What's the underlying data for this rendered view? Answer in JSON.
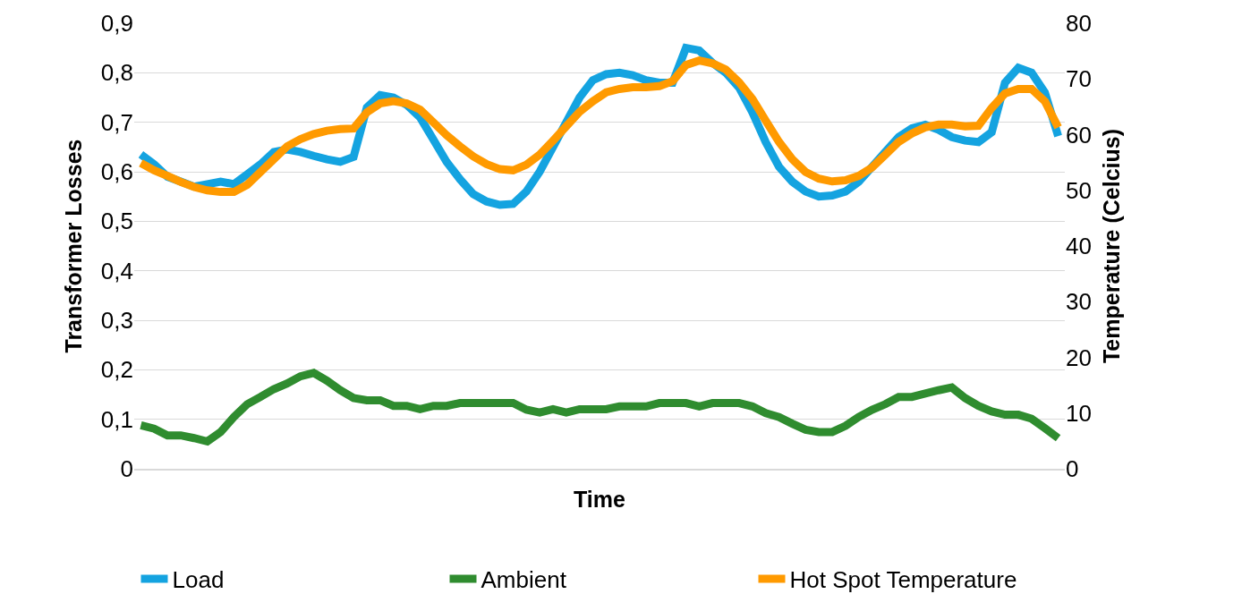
{
  "chart_data": {
    "type": "line",
    "xlabel": "Time",
    "ylabel": "Transformer Losses",
    "y2label": "Temperature (Celcius)",
    "categories": [
      null,
      null,
      null,
      null,
      null,
      null,
      null,
      null,
      null,
      null,
      null,
      null,
      null,
      null,
      null,
      null,
      null,
      null,
      null,
      null,
      null,
      null,
      null,
      null,
      null,
      null,
      null,
      null,
      null,
      null,
      null,
      null,
      null,
      null,
      null,
      null,
      null,
      null,
      null,
      null,
      null,
      null,
      null,
      null,
      null,
      null,
      null,
      null,
      null,
      null,
      null,
      null,
      null,
      null,
      null,
      null,
      null,
      null,
      null,
      null,
      null,
      null,
      null,
      null,
      null,
      null,
      null,
      null,
      null,
      null
    ],
    "series": [
      {
        "name": "Load",
        "color": "#14a3e0",
        "values": [
          0.635,
          0.615,
          0.59,
          0.58,
          0.57,
          0.575,
          0.58,
          0.575,
          0.595,
          0.615,
          0.64,
          0.645,
          0.64,
          0.632,
          0.625,
          0.62,
          0.63,
          0.73,
          0.755,
          0.75,
          0.735,
          0.71,
          0.665,
          0.62,
          0.585,
          0.555,
          0.54,
          0.533,
          0.535,
          0.56,
          0.6,
          0.65,
          0.7,
          0.75,
          0.785,
          0.797,
          0.8,
          0.795,
          0.785,
          0.78,
          0.78,
          0.85,
          0.845,
          0.82,
          0.8,
          0.77,
          0.72,
          0.66,
          0.61,
          0.58,
          0.56,
          0.55,
          0.552,
          0.56,
          0.58,
          0.61,
          0.64,
          0.67,
          0.688,
          0.695,
          0.685,
          0.67,
          0.663,
          0.66,
          0.68,
          0.78,
          0.81,
          0.8,
          0.76,
          0.672
        ]
      },
      {
        "name": "Ambient",
        "color": "#2f8c2f",
        "axis": "y2",
        "values": [
          7.8,
          7.2,
          6.0,
          6.0,
          5.5,
          4.9,
          6.6,
          9.3,
          11.6,
          12.9,
          14.3,
          15.3,
          16.6,
          17.2,
          15.8,
          14.1,
          12.7,
          12.3,
          12.3,
          11.3,
          11.3,
          10.7,
          11.3,
          11.3,
          11.8,
          11.8,
          11.8,
          11.8,
          11.8,
          10.6,
          10.1,
          10.7,
          10.1,
          10.7,
          10.7,
          10.7,
          11.2,
          11.2,
          11.2,
          11.8,
          11.8,
          11.8,
          11.2,
          11.8,
          11.8,
          11.8,
          11.2,
          10.0,
          9.3,
          8.1,
          7.0,
          6.6,
          6.6,
          7.7,
          9.3,
          10.6,
          11.6,
          12.9,
          12.9,
          13.5,
          14.1,
          14.6,
          12.7,
          11.3,
          10.3,
          9.7,
          9.7,
          9.0,
          7.3,
          5.5
        ]
      },
      {
        "name": "Hot Spot Temperature",
        "color": "#ff9a00",
        "axis": "y2",
        "values": [
          54.9,
          53.6,
          52.6,
          51.5,
          50.6,
          50.0,
          49.7,
          49.7,
          51.0,
          53.3,
          55.6,
          57.9,
          59.2,
          60.1,
          60.7,
          61.0,
          61.1,
          64.0,
          65.6,
          66.0,
          65.6,
          64.5,
          62.2,
          59.9,
          57.9,
          56.1,
          54.7,
          53.8,
          53.6,
          54.6,
          56.4,
          58.9,
          61.5,
          64.1,
          66.0,
          67.6,
          68.2,
          68.5,
          68.5,
          68.7,
          69.6,
          72.5,
          73.3,
          72.8,
          71.7,
          69.4,
          66.4,
          62.5,
          58.7,
          55.6,
          53.3,
          52.1,
          51.6,
          51.8,
          52.6,
          54.1,
          56.4,
          58.7,
          60.2,
          61.3,
          61.8,
          61.8,
          61.5,
          61.6,
          64.8,
          67.4,
          68.2,
          68.2,
          66.0,
          61.3
        ]
      }
    ],
    "ylim": [
      0,
      0.9
    ],
    "yticks": [
      0,
      {
        "value": 0.1,
        "label": "0,1"
      },
      {
        "value": 0.2,
        "label": "0,2"
      },
      {
        "value": 0.3,
        "label": "0,3"
      },
      {
        "value": 0.4,
        "label": "0,4"
      },
      {
        "value": 0.5,
        "label": "0,5"
      },
      {
        "value": 0.6,
        "label": "0,6"
      },
      {
        "value": 0.7,
        "label": "0,7"
      },
      {
        "value": 0.8,
        "label": "0,8"
      },
      {
        "value": 0.9,
        "label": "0,9"
      }
    ],
    "y2lim": [
      0,
      80
    ],
    "y2ticks": [
      0,
      10,
      20,
      30,
      40,
      50,
      60,
      70,
      80
    ],
    "grid": "y",
    "legend": "bottom",
    "marker": "none",
    "line_style": "solid"
  }
}
